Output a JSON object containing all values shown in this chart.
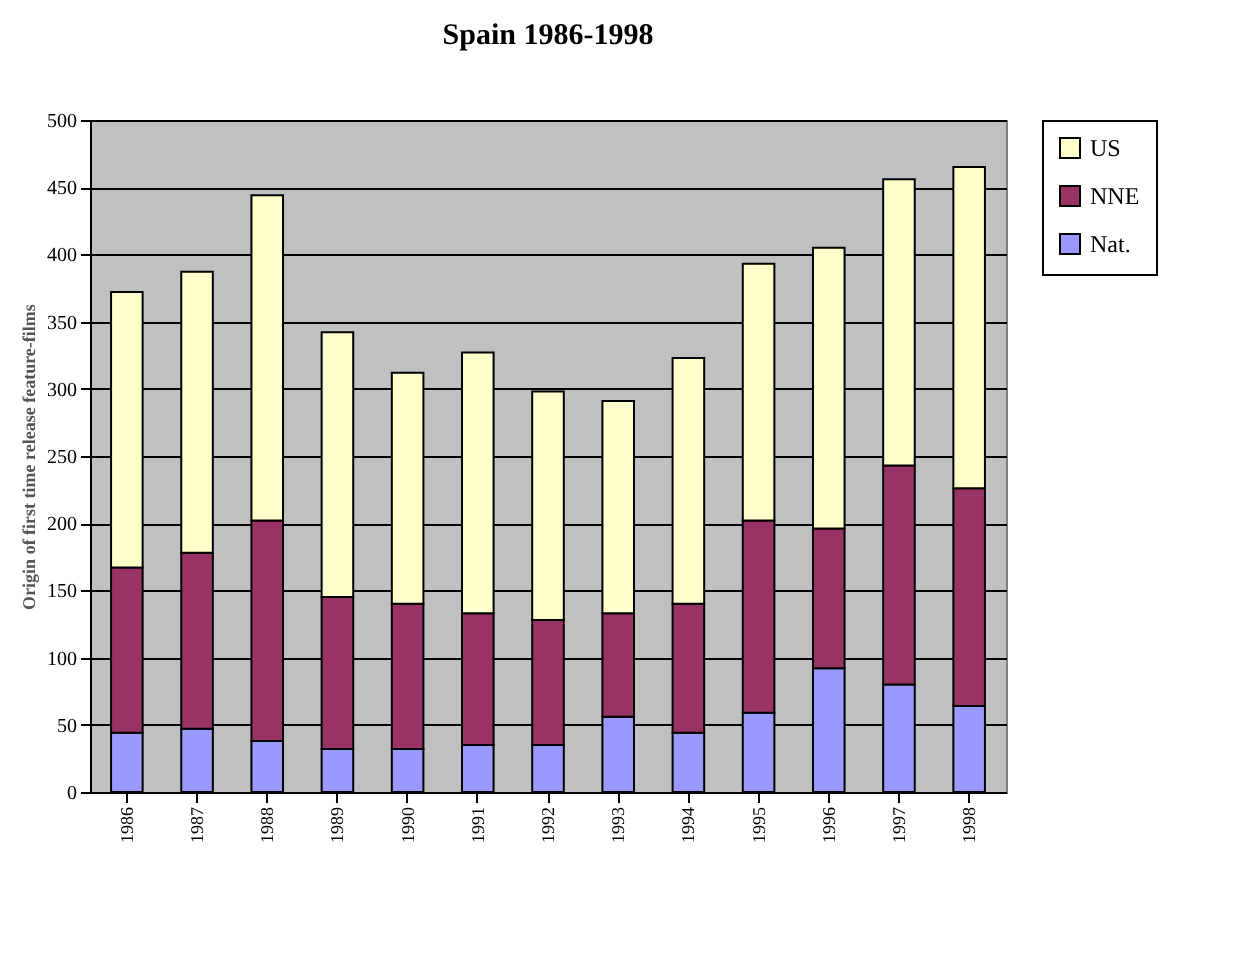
{
  "chart_data": {
    "type": "bar",
    "title": "Spain 1986-1998",
    "ylabel": "Origin of first time release feature-films",
    "stacked": true,
    "categories": [
      "1986",
      "1987",
      "1988",
      "1989",
      "1990",
      "1991",
      "1992",
      "1993",
      "1994",
      "1995",
      "1996",
      "1997",
      "1998"
    ],
    "series": [
      {
        "name": "Nat.",
        "color": "#9999ff",
        "values": [
          44,
          47,
          38,
          32,
          32,
          35,
          35,
          56,
          44,
          59,
          92,
          80,
          64
        ]
      },
      {
        "name": "NNE",
        "color": "#993366",
        "values": [
          123,
          131,
          164,
          113,
          108,
          98,
          93,
          77,
          96,
          143,
          104,
          163,
          162
        ]
      },
      {
        "name": "US",
        "color": "#ffffcc",
        "values": [
          205,
          209,
          242,
          197,
          172,
          194,
          170,
          158,
          183,
          191,
          209,
          213,
          239
        ]
      }
    ],
    "ylim": [
      0,
      500
    ],
    "yticks": [
      0,
      50,
      100,
      150,
      200,
      250,
      300,
      350,
      400,
      450,
      500
    ],
    "grid": "y",
    "legend": "right"
  }
}
